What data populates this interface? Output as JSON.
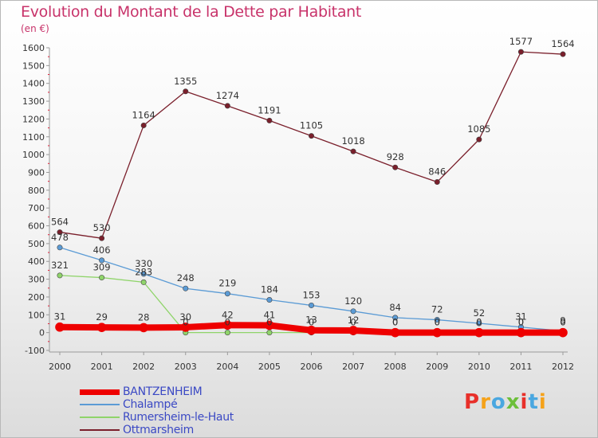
{
  "header": {
    "title": "Evolution du Montant de la Dette par Habitant",
    "subtitle": "(en €)"
  },
  "logo": {
    "text": "Proxiti",
    "colors": [
      "#e8302a",
      "#f5a21a",
      "#4aa7e0",
      "#6cbf3a",
      "#e8302a",
      "#4aa7e0",
      "#f5a21a"
    ]
  },
  "chart_data": {
    "type": "line",
    "title": "Evolution du Montant de la Dette par Habitant",
    "subtitle": "(en €)",
    "xlabel": "",
    "ylabel": "",
    "x": [
      "2000",
      "2001",
      "2002",
      "2003",
      "2004",
      "2005",
      "2006",
      "2007",
      "2008",
      "2009",
      "2010",
      "2011",
      "2012"
    ],
    "ylim": [
      -100,
      1600
    ],
    "yticks": [
      -100,
      0,
      100,
      200,
      300,
      400,
      500,
      600,
      700,
      800,
      900,
      1000,
      1100,
      1200,
      1300,
      1400,
      1500,
      1600
    ],
    "grid": false,
    "legend": "bottom-left",
    "series": [
      {
        "name": "BANTZENHEIM",
        "color": "#ee0000",
        "width": 8,
        "values": [
          31,
          29,
          28,
          30,
          42,
          41,
          13,
          12,
          0,
          0,
          0,
          0,
          0
        ],
        "labels": [
          "31",
          "29",
          "28",
          "30",
          "42",
          "41",
          "13",
          "12",
          "0",
          "0",
          "0",
          "0",
          "0"
        ]
      },
      {
        "name": "Chalampé",
        "color": "#5b9bd5",
        "width": 1.3,
        "values": [
          478,
          406,
          330,
          248,
          219,
          184,
          153,
          120,
          84,
          72,
          52,
          31,
          9
        ],
        "labels": [
          "478",
          "406",
          "330",
          "248",
          "219",
          "184",
          "153",
          "120",
          "84",
          "72",
          "52",
          "31",
          "9"
        ]
      },
      {
        "name": "Rumersheim-le-Haut",
        "color": "#8fd46a",
        "width": 1.3,
        "values": [
          321,
          309,
          283,
          0,
          0,
          0,
          0,
          0,
          0,
          0,
          0,
          0,
          0
        ],
        "labels": [
          "321",
          "309",
          "283",
          "0",
          "0",
          "0",
          "0",
          "0",
          "0",
          "0",
          "0",
          "0",
          "0"
        ]
      },
      {
        "name": "Ottmarsheim",
        "color": "#7a1f2b",
        "width": 1.3,
        "values": [
          564,
          530,
          1164,
          1355,
          1274,
          1191,
          1105,
          1018,
          928,
          846,
          1085,
          1577,
          1564
        ],
        "labels": [
          "564",
          "530",
          "1164",
          "1355",
          "1274",
          "1191",
          "1105",
          "1018",
          "928",
          "846",
          "1085",
          "1577",
          "1564"
        ]
      }
    ]
  }
}
